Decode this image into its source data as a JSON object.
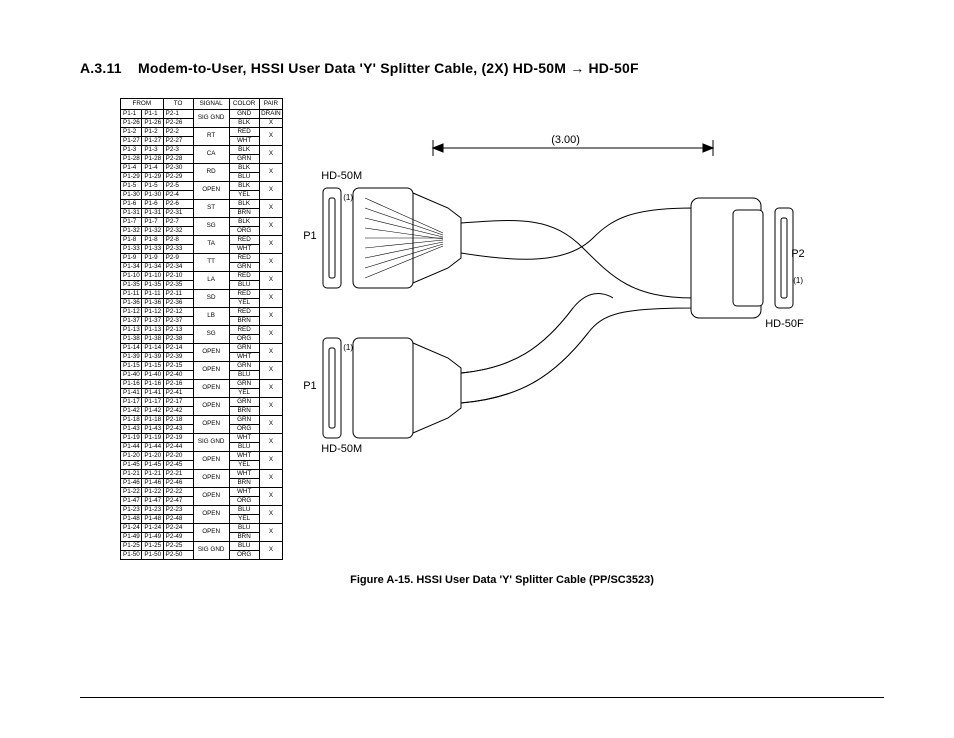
{
  "heading_prefix": "A.3.11",
  "heading_text_a": "Modem-to-User, HSSI User Data 'Y' Splitter Cable, (2X) HD-50M",
  "arrow": "→",
  "heading_text_b": "HD-50F",
  "caption": "Figure A-15. HSSI User Data 'Y' Splitter Cable (PP/SC3523)",
  "table": {
    "headers": {
      "from": "FROM",
      "to": "TO",
      "signal": "SIGNAL",
      "color": "COLOR",
      "pair": "PAIR"
    },
    "rows": [
      {
        "f1": "P1-1",
        "f2": "P1-1",
        "to": "P2-1",
        "sig": "SIG GND",
        "col": "GND",
        "pair": "DRAIN",
        "span": 2
      },
      {
        "f1": "P1-26",
        "f2": "P1-26",
        "to": "P2-26",
        "sig": "",
        "col": "BLK",
        "pair": "X",
        "span": 0,
        "sigrow": true,
        "pairrow": true
      },
      {
        "f1": "P1-2",
        "f2": "P1-2",
        "to": "P2-2",
        "sig": "RT",
        "col": "RED",
        "pair": "X",
        "span": 2
      },
      {
        "f1": "P1-27",
        "f2": "P1-27",
        "to": "P2-27",
        "sig": "",
        "col": "WHT",
        "pair": "",
        "span": 0
      },
      {
        "f1": "P1-3",
        "f2": "P1-3",
        "to": "P2-3",
        "sig": "CA",
        "col": "BLK",
        "pair": "X",
        "span": 2
      },
      {
        "f1": "P1-28",
        "f2": "P1-28",
        "to": "P2-28",
        "sig": "",
        "col": "GRN",
        "pair": "",
        "span": 0
      },
      {
        "f1": "P1-4",
        "f2": "P1-4",
        "to": "P2-30",
        "sig": "RD",
        "col": "BLK",
        "pair": "X",
        "span": 2
      },
      {
        "f1": "P1-29",
        "f2": "P1-29",
        "to": "P2-29",
        "sig": "",
        "col": "BLU",
        "pair": "",
        "span": 0
      },
      {
        "f1": "P1-5",
        "f2": "P1-5",
        "to": "P2-5",
        "sig": "OPEN",
        "col": "BLK",
        "pair": "X",
        "span": 2
      },
      {
        "f1": "P1-30",
        "f2": "P1-30",
        "to": "P2-4",
        "sig": "",
        "col": "YEL",
        "pair": "",
        "span": 0
      },
      {
        "f1": "P1-6",
        "f2": "P1-6",
        "to": "P2-6",
        "sig": "ST",
        "col": "BLK",
        "pair": "X",
        "span": 2
      },
      {
        "f1": "P1-31",
        "f2": "P1-31",
        "to": "P2-31",
        "sig": "",
        "col": "BRN",
        "pair": "",
        "span": 0
      },
      {
        "f1": "P1-7",
        "f2": "P1-7",
        "to": "P2-7",
        "sig": "SG",
        "col": "BLK",
        "pair": "X",
        "span": 2
      },
      {
        "f1": "P1-32",
        "f2": "P1-32",
        "to": "P2-32",
        "sig": "",
        "col": "ORG",
        "pair": "",
        "span": 0
      },
      {
        "f1": "P1-8",
        "f2": "P1-8",
        "to": "P2-8",
        "sig": "TA",
        "col": "RED",
        "pair": "X",
        "span": 2
      },
      {
        "f1": "P1-33",
        "f2": "P1-33",
        "to": "P2-33",
        "sig": "",
        "col": "WHT",
        "pair": "",
        "span": 0
      },
      {
        "f1": "P1-9",
        "f2": "P1-9",
        "to": "P2-9",
        "sig": "TT",
        "col": "RED",
        "pair": "X",
        "span": 2
      },
      {
        "f1": "P1-34",
        "f2": "P1-34",
        "to": "P2-34",
        "sig": "",
        "col": "GRN",
        "pair": "",
        "span": 0
      },
      {
        "f1": "P1-10",
        "f2": "P1-10",
        "to": "P2-10",
        "sig": "LA",
        "col": "RED",
        "pair": "X",
        "span": 2
      },
      {
        "f1": "P1-35",
        "f2": "P1-35",
        "to": "P2-35",
        "sig": "",
        "col": "BLU",
        "pair": "",
        "span": 0
      },
      {
        "f1": "P1-11",
        "f2": "P1-11",
        "to": "P2-11",
        "sig": "SD",
        "col": "RED",
        "pair": "X",
        "span": 2
      },
      {
        "f1": "P1-36",
        "f2": "P1-36",
        "to": "P2-36",
        "sig": "",
        "col": "YEL",
        "pair": "",
        "span": 0
      },
      {
        "f1": "P1-12",
        "f2": "P1-12",
        "to": "P2-12",
        "sig": "LB",
        "col": "RED",
        "pair": "X",
        "span": 2
      },
      {
        "f1": "P1-37",
        "f2": "P1-37",
        "to": "P2-37",
        "sig": "",
        "col": "BRN",
        "pair": "",
        "span": 0
      },
      {
        "f1": "P1-13",
        "f2": "P1-13",
        "to": "P2-13",
        "sig": "SG",
        "col": "RED",
        "pair": "X",
        "span": 2
      },
      {
        "f1": "P1-38",
        "f2": "P1-38",
        "to": "P2-38",
        "sig": "",
        "col": "ORG",
        "pair": "",
        "span": 0
      },
      {
        "f1": "P1-14",
        "f2": "P1-14",
        "to": "P2-14",
        "sig": "OPEN",
        "col": "GRN",
        "pair": "X",
        "span": 2
      },
      {
        "f1": "P1-39",
        "f2": "P1-39",
        "to": "P2-39",
        "sig": "",
        "col": "WHT",
        "pair": "",
        "span": 0
      },
      {
        "f1": "P1-15",
        "f2": "P1-15",
        "to": "P2-15",
        "sig": "OPEN",
        "col": "GRN",
        "pair": "X",
        "span": 2
      },
      {
        "f1": "P1-40",
        "f2": "P1-40",
        "to": "P2-40",
        "sig": "",
        "col": "BLU",
        "pair": "",
        "span": 0
      },
      {
        "f1": "P1-16",
        "f2": "P1-16",
        "to": "P2-16",
        "sig": "OPEN",
        "col": "GRN",
        "pair": "X",
        "span": 2
      },
      {
        "f1": "P1-41",
        "f2": "P1-41",
        "to": "P2-41",
        "sig": "",
        "col": "YEL",
        "pair": "",
        "span": 0
      },
      {
        "f1": "P1-17",
        "f2": "P1-17",
        "to": "P2-17",
        "sig": "OPEN",
        "col": "GRN",
        "pair": "X",
        "span": 2
      },
      {
        "f1": "P1-42",
        "f2": "P1-42",
        "to": "P2-42",
        "sig": "",
        "col": "BRN",
        "pair": "",
        "span": 0
      },
      {
        "f1": "P1-18",
        "f2": "P1-18",
        "to": "P2-18",
        "sig": "OPEN",
        "col": "GRN",
        "pair": "X",
        "span": 2
      },
      {
        "f1": "P1-43",
        "f2": "P1-43",
        "to": "P2-43",
        "sig": "",
        "col": "ORG",
        "pair": "",
        "span": 0
      },
      {
        "f1": "P1-19",
        "f2": "P1-19",
        "to": "P2-19",
        "sig": "SIG GND",
        "col": "WHT",
        "pair": "X",
        "span": 2
      },
      {
        "f1": "P1-44",
        "f2": "P1-44",
        "to": "P2-44",
        "sig": "",
        "col": "BLU",
        "pair": "",
        "span": 0
      },
      {
        "f1": "P1-20",
        "f2": "P1-20",
        "to": "P2-20",
        "sig": "OPEN",
        "col": "WHT",
        "pair": "X",
        "span": 2
      },
      {
        "f1": "P1-45",
        "f2": "P1-45",
        "to": "P2-45",
        "sig": "",
        "col": "YEL",
        "pair": "",
        "span": 0
      },
      {
        "f1": "P1-21",
        "f2": "P1-21",
        "to": "P2-21",
        "sig": "OPEN",
        "col": "WHT",
        "pair": "X",
        "span": 2
      },
      {
        "f1": "P1-46",
        "f2": "P1-46",
        "to": "P2-46",
        "sig": "",
        "col": "BRN",
        "pair": "",
        "span": 0
      },
      {
        "f1": "P1-22",
        "f2": "P1-22",
        "to": "P2-22",
        "sig": "OPEN",
        "col": "WHT",
        "pair": "X",
        "span": 2
      },
      {
        "f1": "P1-47",
        "f2": "P1-47",
        "to": "P2-47",
        "sig": "",
        "col": "ORG",
        "pair": "",
        "span": 0
      },
      {
        "f1": "P1-23",
        "f2": "P1-23",
        "to": "P2-23",
        "sig": "OPEN",
        "col": "BLU",
        "pair": "X",
        "span": 2
      },
      {
        "f1": "P1-48",
        "f2": "P1-48",
        "to": "P2-48",
        "sig": "",
        "col": "YEL",
        "pair": "",
        "span": 0
      },
      {
        "f1": "P1-24",
        "f2": "P1-24",
        "to": "P2-24",
        "sig": "OPEN",
        "col": "BLU",
        "pair": "X",
        "span": 2
      },
      {
        "f1": "P1-49",
        "f2": "P1-49",
        "to": "P2-49",
        "sig": "",
        "col": "BRN",
        "pair": "",
        "span": 0
      },
      {
        "f1": "P1-25",
        "f2": "P1-25",
        "to": "P2-25",
        "sig": "SIG GND",
        "col": "BLU",
        "pair": "X",
        "span": 2
      },
      {
        "f1": "P1-50",
        "f2": "P1-50",
        "to": "P2-50",
        "sig": "",
        "col": "ORG",
        "pair": "",
        "span": 0
      }
    ]
  },
  "drawing": {
    "dim_label": "(3.00)",
    "labels": {
      "hd50m_top": "HD-50M",
      "hd50m_bot": "HD-50M",
      "hd50f": "HD-50F",
      "p1a": "P1",
      "p1b": "P1",
      "p2": "P2",
      "one_a": "(1)",
      "one_b": "(1)",
      "one_c": "(1)"
    },
    "colors": {
      "stroke": "#000000",
      "fill": "#ffffff"
    }
  }
}
